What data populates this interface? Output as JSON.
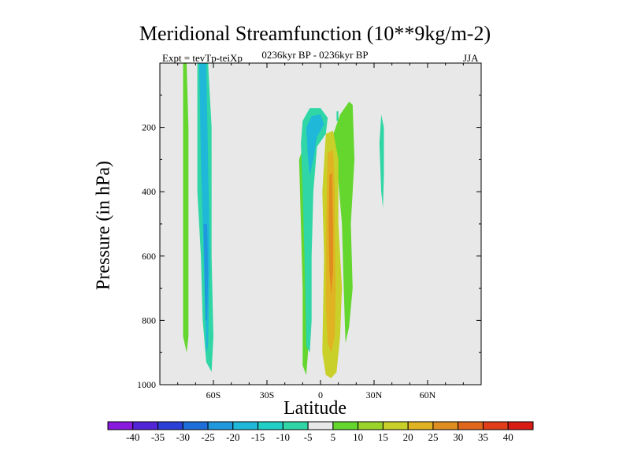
{
  "chart_data": {
    "type": "heatmap",
    "title": "Meridional Streamfunction (10**9kg/m-2)",
    "subtitle": "0236kyr BP - 0236kyr BP",
    "experiment_label": "Expt = tevTp-teiXp",
    "season_label": "JJA",
    "xlabel": "Latitude",
    "ylabel": "Pressure (in hPa)",
    "x_ticks": [
      {
        "value": -60,
        "label": "60S"
      },
      {
        "value": -30,
        "label": "30S"
      },
      {
        "value": 0,
        "label": "0"
      },
      {
        "value": 30,
        "label": "30N"
      },
      {
        "value": 60,
        "label": "60N"
      }
    ],
    "y_ticks": [
      {
        "value": 200,
        "label": "200"
      },
      {
        "value": 400,
        "label": "400"
      },
      {
        "value": 600,
        "label": "600"
      },
      {
        "value": 800,
        "label": "800"
      },
      {
        "value": 1000,
        "label": "1000"
      }
    ],
    "xlim": [
      -90,
      90
    ],
    "ylim": [
      1000,
      0
    ],
    "background_color": "#e8e8e8",
    "colorbar": {
      "levels": [
        "-40",
        "-35",
        "-30",
        "-25",
        "-20",
        "-15",
        "-10",
        "-5",
        "5",
        "10",
        "15",
        "20",
        "25",
        "30",
        "35",
        "40"
      ],
      "colors": [
        "#8a19e0",
        "#5225d8",
        "#2c3fd6",
        "#1e6ed9",
        "#1f98dd",
        "#20b8d8",
        "#20cfc6",
        "#30d6a5",
        "#e8e8e8",
        "#64d62e",
        "#9ad42b",
        "#c9d02a",
        "#e0b322",
        "#e08d1f",
        "#e0661c",
        "#e03d18",
        "#d81c14"
      ]
    },
    "regions": [
      {
        "name": "sh-green-strip",
        "polygon": [
          [
            -77,
            0
          ],
          [
            -75,
            0
          ],
          [
            -74,
            200
          ],
          [
            -74,
            700
          ],
          [
            -74,
            850
          ],
          [
            -75,
            900
          ],
          [
            -77,
            850
          ],
          [
            -77,
            600
          ]
        ],
        "color": "#64d62e"
      },
      {
        "name": "sh-cyan-band",
        "polygon": [
          [
            -69,
            0
          ],
          [
            -63,
            0
          ],
          [
            -61,
            200
          ],
          [
            -61,
            600
          ],
          [
            -60,
            850
          ],
          [
            -61,
            960
          ],
          [
            -64,
            930
          ],
          [
            -66,
            800
          ],
          [
            -67,
            600
          ],
          [
            -69,
            400
          ]
        ],
        "color": "#30d6a5"
      },
      {
        "name": "sh-teal-band",
        "polygon": [
          [
            -68,
            0
          ],
          [
            -64,
            0
          ],
          [
            -63,
            300
          ],
          [
            -62,
            600
          ],
          [
            -63,
            880
          ],
          [
            -64,
            900
          ],
          [
            -65,
            700
          ],
          [
            -66,
            500
          ],
          [
            -67,
            300
          ]
        ],
        "color": "#20b8d8"
      },
      {
        "name": "sh-blue-core",
        "polygon": [
          [
            -65.5,
            500
          ],
          [
            -63.5,
            500
          ],
          [
            -63,
            650
          ],
          [
            -63.5,
            800
          ],
          [
            -64.5,
            800
          ],
          [
            -65,
            650
          ]
        ],
        "color": "#1f98dd"
      },
      {
        "name": "eq-left-green",
        "polygon": [
          [
            -12,
            300
          ],
          [
            -9,
            250
          ],
          [
            -7,
            400
          ],
          [
            -7,
            900
          ],
          [
            -8,
            970
          ],
          [
            -10,
            940
          ],
          [
            -10,
            700
          ],
          [
            -11,
            500
          ]
        ],
        "color": "#64d62e"
      },
      {
        "name": "eq-cyan-cell",
        "polygon": [
          [
            -10,
            180
          ],
          [
            -6,
            140
          ],
          [
            0,
            140
          ],
          [
            4,
            170
          ],
          [
            3,
            220
          ],
          [
            -2,
            260
          ],
          [
            -4,
            400
          ],
          [
            -5,
            600
          ],
          [
            -5,
            800
          ],
          [
            -6,
            900
          ],
          [
            -8,
            880
          ],
          [
            -9,
            600
          ],
          [
            -10,
            400
          ],
          [
            -11,
            250
          ]
        ],
        "color": "#30d6a5"
      },
      {
        "name": "eq-teal-core",
        "polygon": [
          [
            -8,
            200
          ],
          [
            -5,
            165
          ],
          [
            0,
            160
          ],
          [
            2,
            190
          ],
          [
            -2,
            230
          ],
          [
            -4,
            300
          ],
          [
            -6,
            350
          ],
          [
            -7,
            300
          ]
        ],
        "color": "#20b8d8"
      },
      {
        "name": "eq-right-green",
        "polygon": [
          [
            3,
            250
          ],
          [
            6,
            240
          ],
          [
            11,
            160
          ],
          [
            16,
            120
          ],
          [
            18,
            130
          ],
          [
            19,
            300
          ],
          [
            17,
            500
          ],
          [
            18,
            700
          ],
          [
            16,
            820
          ],
          [
            14,
            870
          ],
          [
            13,
            700
          ],
          [
            12,
            500
          ],
          [
            9,
            300
          ]
        ],
        "color": "#64d62e"
      },
      {
        "name": "eq-yellow-cell",
        "polygon": [
          [
            3,
            220
          ],
          [
            7,
            210
          ],
          [
            10,
            300
          ],
          [
            10,
            500
          ],
          [
            12,
            700
          ],
          [
            11,
            850
          ],
          [
            9,
            960
          ],
          [
            6,
            980
          ],
          [
            3,
            970
          ],
          [
            1,
            900
          ],
          [
            2,
            600
          ],
          [
            1,
            400
          ]
        ],
        "color": "#c9d02a"
      },
      {
        "name": "eq-orange-cell",
        "polygon": [
          [
            4,
            280
          ],
          [
            7,
            270
          ],
          [
            8,
            400
          ],
          [
            8,
            550
          ],
          [
            8.5,
            700
          ],
          [
            8,
            850
          ],
          [
            6,
            900
          ],
          [
            4,
            870
          ],
          [
            3,
            750
          ],
          [
            3,
            550
          ],
          [
            3.5,
            400
          ]
        ],
        "color": "#e0b322"
      },
      {
        "name": "eq-deep-orange-core",
        "polygon": [
          [
            5,
            350
          ],
          [
            6.5,
            340
          ],
          [
            7,
            500
          ],
          [
            7,
            650
          ],
          [
            6,
            720
          ],
          [
            5,
            650
          ],
          [
            4.5,
            500
          ]
        ],
        "color": "#e08d1f"
      },
      {
        "name": "nh-cyan-spot",
        "polygon": [
          [
            34,
            160
          ],
          [
            35.5,
            200
          ],
          [
            35.5,
            350
          ],
          [
            35,
            450
          ],
          [
            34,
            400
          ],
          [
            33,
            250
          ]
        ],
        "color": "#30d6a5"
      },
      {
        "name": "upper-cyan-dot",
        "polygon": [
          [
            9,
            150
          ],
          [
            10,
            150
          ],
          [
            10,
            180
          ],
          [
            9,
            180
          ]
        ],
        "color": "#30d6a5"
      }
    ]
  }
}
